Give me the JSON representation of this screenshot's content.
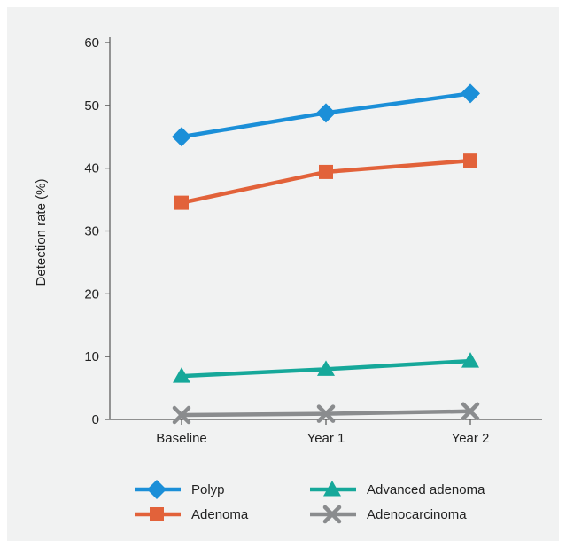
{
  "chart_data": {
    "type": "line",
    "title": "",
    "xlabel": "",
    "ylabel": "Detection rate (%)",
    "ylim": [
      0,
      60
    ],
    "yticks": [
      0,
      10,
      20,
      30,
      40,
      50,
      60
    ],
    "grid": false,
    "legend_position": "bottom",
    "categories": [
      "Baseline",
      "Year 1",
      "Year 2"
    ],
    "series": [
      {
        "name": "Polyp",
        "values": [
          45.0,
          48.8,
          51.9
        ],
        "color": "#1b8fd8",
        "marker": "diamond"
      },
      {
        "name": "Adenoma",
        "values": [
          34.5,
          39.4,
          41.2
        ],
        "color": "#e2623a",
        "marker": "square"
      },
      {
        "name": "Advanced adenoma",
        "values": [
          6.9,
          8.0,
          9.3
        ],
        "color": "#16a89a",
        "marker": "triangle"
      },
      {
        "name": "Adenocarcinoma",
        "values": [
          0.7,
          0.9,
          1.3
        ],
        "color": "#8a8c8e",
        "marker": "x"
      }
    ]
  }
}
